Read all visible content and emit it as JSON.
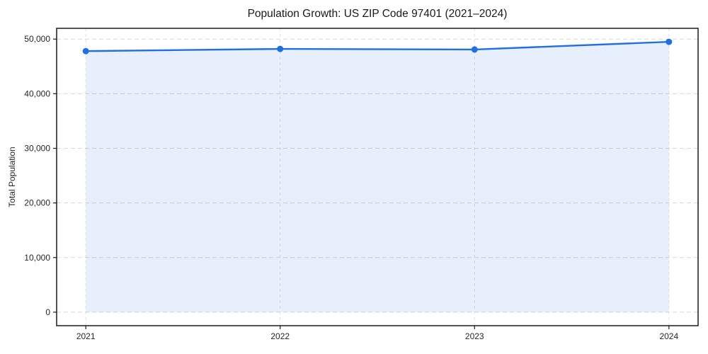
{
  "chart_data": {
    "type": "area",
    "title": "Population Growth: US ZIP Code 97401 (2021–2024)",
    "xlabel": "",
    "ylabel": "Total Population",
    "x": [
      2021,
      2022,
      2023,
      2024
    ],
    "series": [
      {
        "name": "Total Population",
        "values": [
          47800,
          48200,
          48100,
          49500
        ]
      }
    ],
    "fill_to": 0,
    "xticks": {
      "values": [
        2021,
        2022,
        2023,
        2024
      ],
      "labels": [
        "2021",
        "2022",
        "2023",
        "2024"
      ]
    },
    "yticks": {
      "values": [
        0,
        10000,
        20000,
        30000,
        40000,
        50000
      ],
      "labels": [
        "0",
        "10,000",
        "20,000",
        "30,000",
        "40,000",
        "50,000"
      ]
    },
    "xlim": [
      2020.85,
      2024.15
    ],
    "ylim": [
      -2475,
      51975
    ],
    "grid": true,
    "grid_style": "dashed",
    "legend": "none",
    "marker": "circle",
    "colors": {
      "line": "#2170e0",
      "marker": "#2170e0",
      "fill": "#2170e0",
      "fill_opacity": 0.11,
      "grid_horizontal": "#d8d8d8",
      "grid_vertical": "#e2e2e2",
      "spine": "#1a1a1a",
      "tick_text": "#262626",
      "background": "#ffffff"
    }
  }
}
